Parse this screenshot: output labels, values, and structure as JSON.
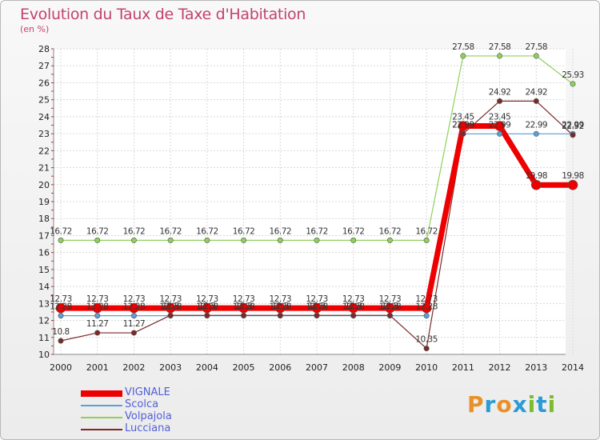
{
  "title": "Evolution du Taux de Taxe d'Habitation",
  "unit_label": "(en %)",
  "brand": {
    "letters": [
      "P",
      "r",
      "o",
      "x",
      "i",
      "t",
      "i"
    ],
    "colors": [
      "#e8912a",
      "#2b9bd6",
      "#e8912a",
      "#2b9bd6",
      "#7dbb2e",
      "#2b9bd6",
      "#7dbb2e"
    ]
  },
  "chart_data": {
    "type": "line",
    "title": "Evolution du Taux de Taxe d'Habitation",
    "ylabel": "(en %)",
    "xlabel": "",
    "ylim": [
      10,
      28
    ],
    "yticks": [
      10,
      11,
      12,
      13,
      14,
      15,
      16,
      17,
      18,
      19,
      20,
      21,
      22,
      23,
      24,
      25,
      26,
      27,
      28
    ],
    "categories": [
      "2000",
      "2001",
      "2002",
      "2003",
      "2004",
      "2005",
      "2006",
      "2007",
      "2008",
      "2009",
      "2010",
      "2011",
      "2012",
      "2013",
      "2014"
    ],
    "series": [
      {
        "name": "Volpajola",
        "color": "#8fd05a",
        "values": [
          16.72,
          16.72,
          16.72,
          16.72,
          16.72,
          16.72,
          16.72,
          16.72,
          16.72,
          16.72,
          16.72,
          27.58,
          27.58,
          27.58,
          25.93
        ],
        "labels": [
          "16.72",
          "16.72",
          "16.72",
          "16.72",
          "16.72",
          "16.72",
          "16.72",
          "16.72",
          "16.72",
          "16.72",
          "16.72",
          "27.58",
          "27.58",
          "27.58",
          "25.93"
        ]
      },
      {
        "name": "Scolca",
        "color": "#5a9fd6",
        "values": [
          12.28,
          12.28,
          12.28,
          12.28,
          12.28,
          12.28,
          12.28,
          12.28,
          12.28,
          12.28,
          12.28,
          22.99,
          22.99,
          22.99,
          22.99
        ],
        "labels": [
          "12.28",
          "12.28",
          "12.28",
          "12.28",
          "12.28",
          "12.28",
          "12.28",
          "12.28",
          "12.28",
          "12.28",
          "12.28",
          "22.99",
          "22.99",
          "22.99",
          "22.99"
        ]
      },
      {
        "name": "Lucciana",
        "color": "#7a2a2a",
        "values": [
          10.8,
          11.27,
          11.27,
          12.3,
          12.3,
          12.3,
          12.3,
          12.3,
          12.3,
          12.3,
          10.35,
          22.99,
          24.92,
          24.92,
          22.92
        ],
        "labels": [
          "10.8",
          "11.27",
          "11.27",
          "12.3",
          "12.3",
          "12.3",
          "12.3",
          "12.3",
          "12.3",
          "12.3",
          "10.35",
          "22.99",
          "24.92",
          "24.92",
          "22.92"
        ]
      },
      {
        "name": "VIGNALE",
        "color": "#ee0000",
        "values": [
          12.73,
          12.73,
          12.73,
          12.73,
          12.73,
          12.73,
          12.73,
          12.73,
          12.73,
          12.73,
          12.73,
          23.45,
          23.45,
          19.98,
          19.98
        ],
        "labels": [
          "12.73",
          "12.73",
          "12.73",
          "12.73",
          "12.73",
          "12.73",
          "12.73",
          "12.73",
          "12.73",
          "12.73",
          "12.73",
          "23.45",
          "23.45",
          "19.98",
          "19.98"
        ]
      }
    ],
    "legend": [
      "VIGNALE",
      "Scolca",
      "Volpajola",
      "Lucciana"
    ]
  }
}
